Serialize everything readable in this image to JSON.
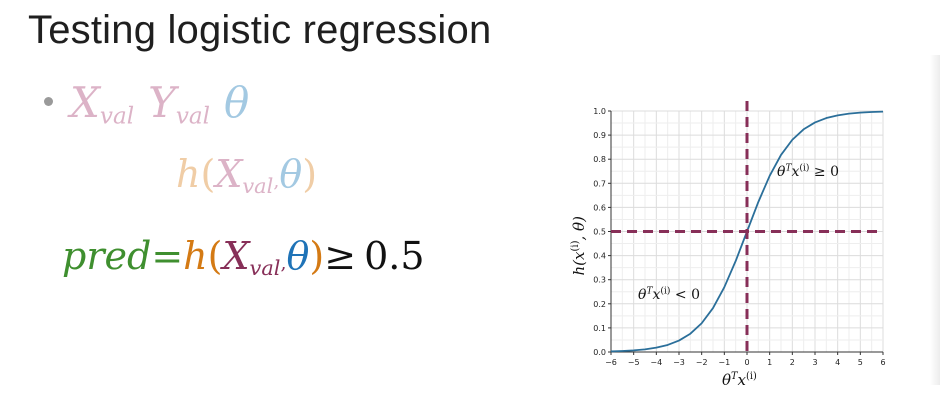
{
  "slide": {
    "title": "Testing logistic regression",
    "bullet": {
      "x_main": "X",
      "x_sub": "val",
      "y_main": "Y",
      "y_sub": "val",
      "theta": "θ"
    },
    "expr_h": {
      "fn": "h",
      "open": "(",
      "x_main": "X",
      "x_sub": "val",
      "comma": ",",
      "theta": "θ",
      "close": ")"
    },
    "pred": {
      "pred": "pred",
      "eq": "=",
      "fn": "h",
      "open": "(",
      "x_main": "X",
      "x_sub": "val",
      "comma": ",",
      "theta": "θ",
      "close": ")",
      "geq": "≥",
      "threshold": "0.5"
    }
  },
  "colors": {
    "curve": "#2b6f9a",
    "dashed": "#872f58",
    "pred_green": "#3f8f2f",
    "h_orange": "#d47a14",
    "x_purple": "#872f58",
    "theta_blue": "#1f73b7"
  },
  "chart_data": {
    "type": "line",
    "function": "sigmoid",
    "x": [
      -6,
      -5.5,
      -5,
      -4.5,
      -4,
      -3.5,
      -3,
      -2.5,
      -2,
      -1.5,
      -1,
      -0.5,
      0,
      0.5,
      1,
      1.5,
      2,
      2.5,
      3,
      3.5,
      4,
      4.5,
      5,
      5.5,
      6
    ],
    "y": [
      0.0025,
      0.0041,
      0.0067,
      0.011,
      0.018,
      0.0293,
      0.0474,
      0.0759,
      0.1192,
      0.1824,
      0.2689,
      0.3775,
      0.5,
      0.6225,
      0.7311,
      0.8176,
      0.8808,
      0.9241,
      0.9526,
      0.9707,
      0.982,
      0.989,
      0.9933,
      0.9959,
      0.9975
    ],
    "xlim": [
      -6,
      6
    ],
    "ylim": [
      0,
      1
    ],
    "xticks": [
      "−6",
      "−5",
      "−4",
      "−3",
      "−2",
      "−1",
      "0",
      "1",
      "2",
      "3",
      "4",
      "5",
      "6"
    ],
    "yticks": [
      "0.0",
      "0.1",
      "0.2",
      "0.3",
      "0.4",
      "0.5",
      "0.6",
      "0.7",
      "0.8",
      "0.9",
      "1.0"
    ],
    "xlabel_base": "θ",
    "xlabel_sup": "T",
    "xlabel_var": "x",
    "xlabel_var_sup": "(i)",
    "ylabel": "h(x(i), θ)",
    "ylabel_parts": {
      "fn": "h(",
      "var": "x",
      "sup": "(i)",
      "rest": ", θ)"
    },
    "threshold_x": 0,
    "threshold_y": 0.5,
    "grid": true,
    "annotations": [
      {
        "base": "θ",
        "sup": "T",
        "var": "x",
        "var_sup": "(i)",
        "rel": " ≥ 0"
      },
      {
        "base": "θ",
        "sup": "T",
        "var": "x",
        "var_sup": "(i)",
        "rel": " < 0"
      }
    ]
  }
}
